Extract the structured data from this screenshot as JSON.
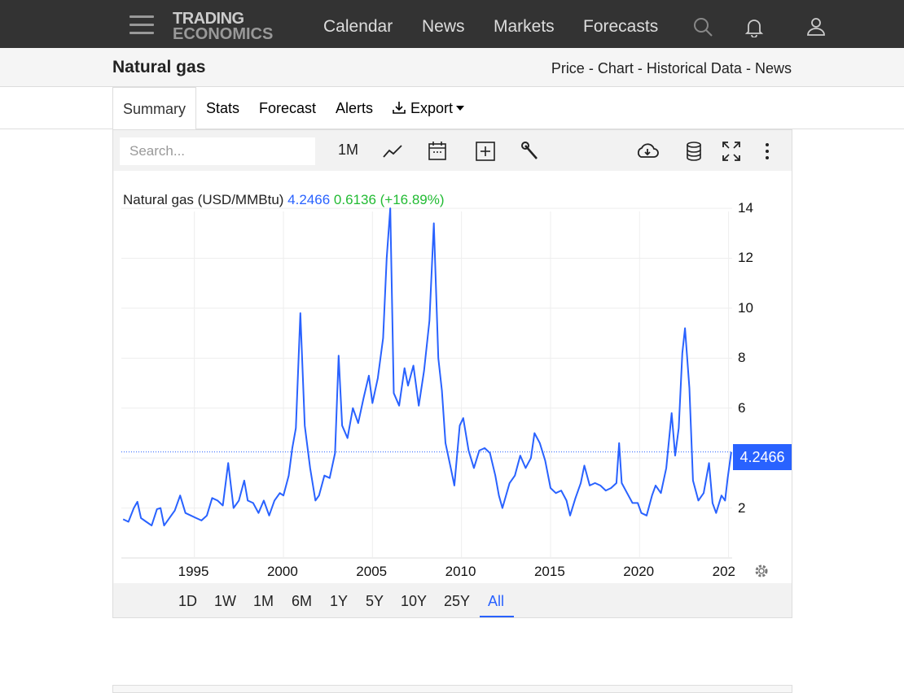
{
  "header": {
    "logo_line1": "TRADING",
    "logo_line2": "ECONOMICS",
    "nav": [
      "Calendar",
      "News",
      "Markets",
      "Forecasts"
    ],
    "icons": [
      "menu-icon",
      "search-icon",
      "bell-icon",
      "user-icon"
    ]
  },
  "subheader": {
    "title": "Natural gas",
    "crumbs": [
      "Price",
      "Chart",
      "Historical Data",
      "News"
    ],
    "separator": "-"
  },
  "tabs": {
    "items": [
      "Summary",
      "Stats",
      "Forecast",
      "Alerts",
      "Export"
    ],
    "active": "Summary"
  },
  "toolbar": {
    "search_placeholder": "Search...",
    "interval": "1M",
    "icons": [
      "line-chart-icon",
      "calendar-icon",
      "add-compare-icon",
      "wrench-icon",
      "cloud-download-icon",
      "database-icon",
      "fullscreen-icon",
      "more-vertical-icon"
    ]
  },
  "legend": {
    "name": "Natural gas (USD/MMBtu)",
    "value": "4.2466",
    "change": "0.6136 (+16.89%)"
  },
  "price_tag": "4.2466",
  "ranges": {
    "items": [
      "1D",
      "1W",
      "1M",
      "6M",
      "1Y",
      "5Y",
      "10Y",
      "25Y",
      "All"
    ],
    "active": "All"
  },
  "colors": {
    "line": "#2962ff",
    "positive": "#22bb33",
    "header_bg": "#333333"
  },
  "chart_data": {
    "type": "line",
    "title": "Natural gas (USD/MMBtu)",
    "xlabel": "",
    "ylabel": "",
    "x_ticks": [
      "1995",
      "2000",
      "2005",
      "2010",
      "2015",
      "2020",
      "202"
    ],
    "y_ticks": [
      2,
      4,
      6,
      8,
      10,
      12,
      14
    ],
    "ylim": [
      0,
      15.5
    ],
    "xlim": [
      1990.9,
      2025.2
    ],
    "grid": true,
    "current_value": 4.2466,
    "series": [
      {
        "name": "Natural gas",
        "points": [
          [
            1991.0,
            1.55
          ],
          [
            1991.3,
            1.45
          ],
          [
            1991.6,
            2.0
          ],
          [
            1991.8,
            2.25
          ],
          [
            1992.0,
            1.6
          ],
          [
            1992.3,
            1.45
          ],
          [
            1992.6,
            1.3
          ],
          [
            1992.9,
            1.95
          ],
          [
            1993.1,
            2.0
          ],
          [
            1993.3,
            1.3
          ],
          [
            1993.6,
            1.6
          ],
          [
            1993.9,
            1.9
          ],
          [
            1994.2,
            2.5
          ],
          [
            1994.5,
            1.8
          ],
          [
            1994.8,
            1.7
          ],
          [
            1995.1,
            1.6
          ],
          [
            1995.4,
            1.5
          ],
          [
            1995.7,
            1.7
          ],
          [
            1996.0,
            2.4
          ],
          [
            1996.3,
            2.3
          ],
          [
            1996.6,
            2.1
          ],
          [
            1996.9,
            3.8
          ],
          [
            1997.2,
            2.0
          ],
          [
            1997.5,
            2.3
          ],
          [
            1997.8,
            3.1
          ],
          [
            1998.0,
            2.3
          ],
          [
            1998.3,
            2.2
          ],
          [
            1998.6,
            1.8
          ],
          [
            1998.9,
            2.3
          ],
          [
            1999.2,
            1.7
          ],
          [
            1999.5,
            2.3
          ],
          [
            1999.8,
            2.6
          ],
          [
            2000.0,
            2.5
          ],
          [
            2000.3,
            3.3
          ],
          [
            2000.5,
            4.4
          ],
          [
            2000.7,
            5.2
          ],
          [
            2000.95,
            9.8
          ],
          [
            2001.2,
            5.3
          ],
          [
            2001.5,
            3.6
          ],
          [
            2001.8,
            2.3
          ],
          [
            2002.0,
            2.5
          ],
          [
            2002.3,
            3.3
          ],
          [
            2002.6,
            3.2
          ],
          [
            2002.9,
            4.2
          ],
          [
            2003.1,
            8.1
          ],
          [
            2003.3,
            5.3
          ],
          [
            2003.6,
            4.8
          ],
          [
            2003.9,
            6.0
          ],
          [
            2004.2,
            5.4
          ],
          [
            2004.5,
            6.4
          ],
          [
            2004.8,
            7.3
          ],
          [
            2005.0,
            6.2
          ],
          [
            2005.3,
            7.2
          ],
          [
            2005.6,
            8.8
          ],
          [
            2005.8,
            12.0
          ],
          [
            2006.0,
            14.0
          ],
          [
            2006.2,
            6.6
          ],
          [
            2006.5,
            6.1
          ],
          [
            2006.8,
            7.6
          ],
          [
            2007.0,
            6.9
          ],
          [
            2007.3,
            7.7
          ],
          [
            2007.6,
            6.1
          ],
          [
            2007.9,
            7.5
          ],
          [
            2008.2,
            9.5
          ],
          [
            2008.45,
            13.4
          ],
          [
            2008.7,
            8.0
          ],
          [
            2008.9,
            6.7
          ],
          [
            2009.1,
            4.6
          ],
          [
            2009.4,
            3.6
          ],
          [
            2009.6,
            2.9
          ],
          [
            2009.9,
            5.3
          ],
          [
            2010.1,
            5.6
          ],
          [
            2010.4,
            4.3
          ],
          [
            2010.7,
            3.6
          ],
          [
            2011.0,
            4.3
          ],
          [
            2011.3,
            4.4
          ],
          [
            2011.6,
            4.2
          ],
          [
            2011.9,
            3.3
          ],
          [
            2012.1,
            2.5
          ],
          [
            2012.3,
            2.0
          ],
          [
            2012.7,
            3.0
          ],
          [
            2013.0,
            3.3
          ],
          [
            2013.3,
            4.1
          ],
          [
            2013.6,
            3.6
          ],
          [
            2013.9,
            4.0
          ],
          [
            2014.1,
            5.0
          ],
          [
            2014.4,
            4.6
          ],
          [
            2014.7,
            3.9
          ],
          [
            2015.0,
            2.8
          ],
          [
            2015.3,
            2.6
          ],
          [
            2015.6,
            2.7
          ],
          [
            2015.9,
            2.3
          ],
          [
            2016.1,
            1.7
          ],
          [
            2016.4,
            2.4
          ],
          [
            2016.7,
            3.0
          ],
          [
            2016.9,
            3.7
          ],
          [
            2017.2,
            2.9
          ],
          [
            2017.5,
            3.0
          ],
          [
            2017.8,
            2.9
          ],
          [
            2018.1,
            2.7
          ],
          [
            2018.4,
            2.8
          ],
          [
            2018.7,
            3.0
          ],
          [
            2018.85,
            4.6
          ],
          [
            2019.0,
            3.0
          ],
          [
            2019.3,
            2.6
          ],
          [
            2019.6,
            2.2
          ],
          [
            2019.9,
            2.2
          ],
          [
            2020.1,
            1.8
          ],
          [
            2020.4,
            1.7
          ],
          [
            2020.7,
            2.5
          ],
          [
            2020.9,
            2.9
          ],
          [
            2021.2,
            2.6
          ],
          [
            2021.5,
            3.6
          ],
          [
            2021.8,
            5.8
          ],
          [
            2022.0,
            4.1
          ],
          [
            2022.2,
            5.2
          ],
          [
            2022.4,
            8.2
          ],
          [
            2022.55,
            9.2
          ],
          [
            2022.8,
            6.8
          ],
          [
            2023.0,
            3.1
          ],
          [
            2023.3,
            2.3
          ],
          [
            2023.6,
            2.6
          ],
          [
            2023.9,
            3.8
          ],
          [
            2024.1,
            2.2
          ],
          [
            2024.3,
            1.8
          ],
          [
            2024.6,
            2.5
          ],
          [
            2024.8,
            2.3
          ],
          [
            2024.95,
            3.2
          ],
          [
            2025.15,
            4.2466
          ]
        ]
      }
    ]
  }
}
